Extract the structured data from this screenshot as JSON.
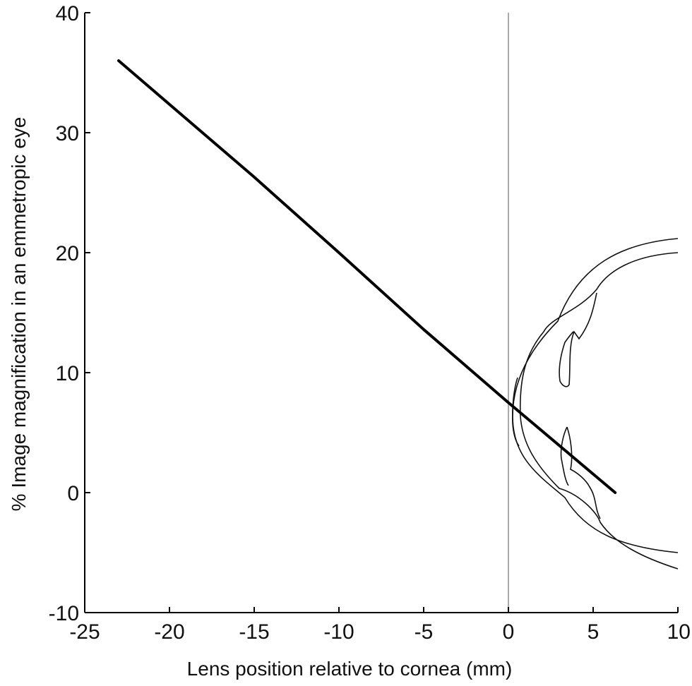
{
  "chart_data": {
    "type": "line",
    "xlabel": "Lens position relative to cornea (mm)",
    "ylabel": "% Image magnification in an emmetropic eye",
    "xlim": [
      -25,
      10
    ],
    "ylim": [
      -10,
      40
    ],
    "x_ticks": [
      -25,
      -20,
      -15,
      -10,
      -5,
      0,
      5,
      10
    ],
    "y_ticks": [
      -10,
      0,
      10,
      20,
      30,
      40
    ],
    "x_tick_labels": [
      "-25",
      "-20",
      "-15",
      "-10",
      "-5",
      "0",
      "5",
      "10"
    ],
    "y_tick_labels": [
      "-10",
      "0",
      "10",
      "20",
      "30",
      "40"
    ],
    "grid": false,
    "reference_line_x": 0,
    "series": [
      {
        "x": [
          -23,
          -15,
          -10,
          -5,
          0,
          6.3
        ],
        "y": [
          36,
          26.3,
          20,
          13.6,
          7.5,
          0
        ],
        "color": "#000000"
      }
    ],
    "annotation_drawing": "eye cross-section outline"
  }
}
